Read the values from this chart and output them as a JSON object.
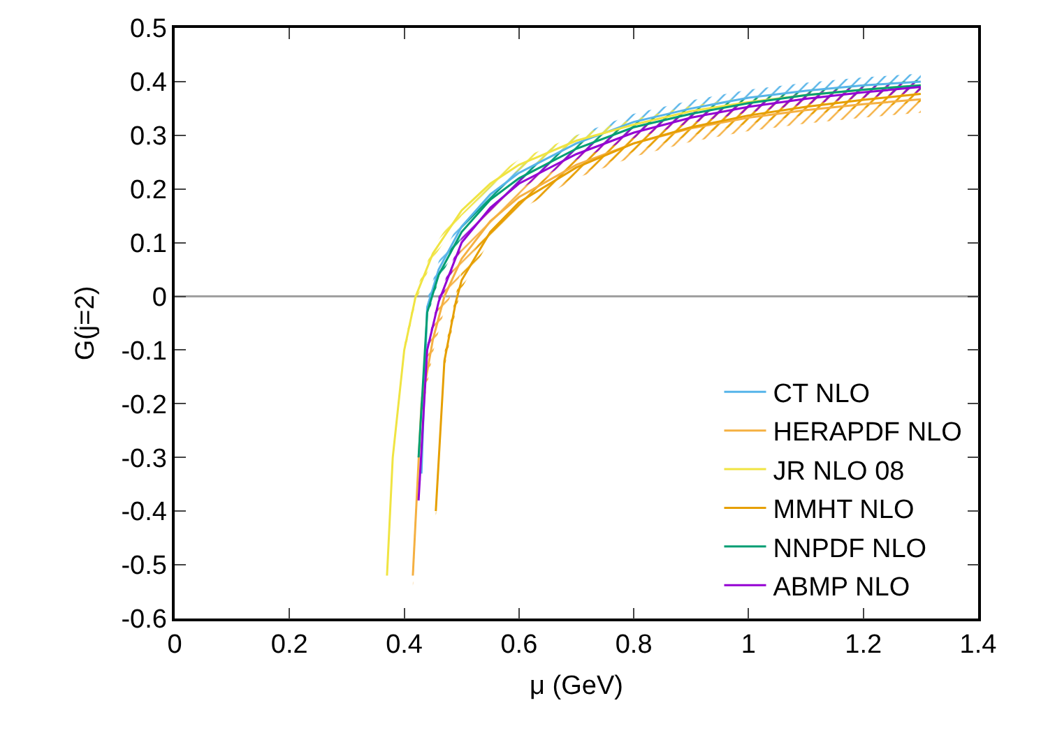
{
  "chart_data": {
    "type": "line",
    "xlabel": "μ (GeV)",
    "ylabel": "G(j=2)",
    "xlim": [
      0,
      1.4
    ],
    "xticks": [
      0,
      0.2,
      0.4,
      0.6,
      0.8,
      1,
      1.2,
      1.4
    ],
    "ylim": [
      -0.6,
      0.5
    ],
    "yticks": [
      -0.6,
      -0.5,
      -0.4,
      -0.3,
      -0.2,
      -0.1,
      0,
      0.1,
      0.2,
      0.3,
      0.4,
      0.5
    ],
    "grid": false,
    "legend": "bottom right",
    "marker": "none",
    "ref_lines": [
      {
        "axis": "y",
        "value": 0,
        "color": "#a0a0a0"
      }
    ],
    "series": [
      {
        "name": "CT NLO",
        "color": "#56b4e9",
        "x": [
          0.43,
          0.44,
          0.46,
          0.5,
          0.55,
          0.6,
          0.7,
          0.8,
          0.9,
          1.0,
          1.1,
          1.2,
          1.3
        ],
        "values": [
          -0.33,
          -0.02,
          0.05,
          0.13,
          0.19,
          0.23,
          0.285,
          0.325,
          0.35,
          0.37,
          0.383,
          0.393,
          0.4
        ],
        "lower": [
          -0.345,
          -0.035,
          0.035,
          0.115,
          0.175,
          0.215,
          0.27,
          0.31,
          0.335,
          0.355,
          0.368,
          0.378,
          0.385
        ],
        "upper": [
          -0.315,
          -0.005,
          0.065,
          0.145,
          0.205,
          0.245,
          0.3,
          0.34,
          0.365,
          0.385,
          0.398,
          0.408,
          0.415
        ]
      },
      {
        "name": "HERAPDF NLO",
        "color": "#f5b041",
        "x": [
          0.415,
          0.43,
          0.45,
          0.47,
          0.5,
          0.55,
          0.6,
          0.7,
          0.8,
          0.9,
          1.0,
          1.1,
          1.2,
          1.3
        ],
        "values": [
          -0.52,
          -0.2,
          -0.08,
          0.0,
          0.07,
          0.14,
          0.185,
          0.245,
          0.285,
          0.313,
          0.333,
          0.347,
          0.358,
          0.367
        ],
        "lower": [
          -0.545,
          -0.225,
          -0.105,
          -0.025,
          0.045,
          0.115,
          0.16,
          0.22,
          0.26,
          0.288,
          0.308,
          0.322,
          0.333,
          0.342
        ],
        "upper": [
          -0.495,
          -0.175,
          -0.055,
          0.025,
          0.095,
          0.165,
          0.21,
          0.27,
          0.31,
          0.338,
          0.358,
          0.372,
          0.383,
          0.392
        ]
      },
      {
        "name": "JR NLO 08",
        "color": "#f0e442",
        "x": [
          0.37,
          0.38,
          0.4,
          0.42,
          0.45,
          0.5,
          0.55,
          0.6,
          0.7,
          0.8,
          0.9,
          1.0,
          1.1,
          1.2,
          1.3
        ],
        "values": [
          -0.52,
          -0.3,
          -0.1,
          0.0,
          0.08,
          0.16,
          0.21,
          0.245,
          0.29,
          0.32,
          0.345,
          0.362,
          0.375,
          0.385,
          0.393
        ],
        "lower": [
          -0.53,
          -0.31,
          -0.11,
          -0.01,
          0.07,
          0.15,
          0.2,
          0.235,
          0.28,
          0.31,
          0.335,
          0.352,
          0.365,
          0.375,
          0.383
        ],
        "upper": [
          -0.51,
          -0.29,
          -0.09,
          0.01,
          0.09,
          0.17,
          0.22,
          0.255,
          0.3,
          0.33,
          0.355,
          0.372,
          0.385,
          0.395,
          0.403
        ]
      },
      {
        "name": "MMHT NLO",
        "color": "#e69f00",
        "x": [
          0.455,
          0.47,
          0.49,
          0.5,
          0.55,
          0.6,
          0.7,
          0.8,
          0.9,
          1.0,
          1.1,
          1.2,
          1.3
        ],
        "values": [
          -0.4,
          -0.12,
          -0.01,
          0.03,
          0.12,
          0.175,
          0.24,
          0.285,
          0.315,
          0.337,
          0.353,
          0.366,
          0.377
        ],
        "lower": [
          -0.415,
          -0.135,
          -0.025,
          0.015,
          0.105,
          0.16,
          0.225,
          0.27,
          0.3,
          0.322,
          0.338,
          0.351,
          0.362
        ],
        "upper": [
          -0.385,
          -0.105,
          0.005,
          0.045,
          0.135,
          0.19,
          0.255,
          0.3,
          0.33,
          0.352,
          0.368,
          0.381,
          0.392
        ]
      },
      {
        "name": "NNPDF NLO",
        "color": "#009e73",
        "x": [
          0.425,
          0.44,
          0.46,
          0.5,
          0.55,
          0.6,
          0.7,
          0.8,
          0.9,
          1.0,
          1.1,
          1.2,
          1.3
        ],
        "values": [
          -0.3,
          -0.03,
          0.04,
          0.12,
          0.18,
          0.22,
          0.275,
          0.315,
          0.34,
          0.36,
          0.375,
          0.385,
          0.393
        ],
        "lower": [
          -0.31,
          -0.04,
          0.03,
          0.11,
          0.17,
          0.21,
          0.265,
          0.305,
          0.33,
          0.35,
          0.365,
          0.375,
          0.383
        ],
        "upper": [
          -0.29,
          -0.02,
          0.05,
          0.13,
          0.19,
          0.23,
          0.285,
          0.325,
          0.35,
          0.37,
          0.385,
          0.395,
          0.403
        ]
      },
      {
        "name": "ABMP NLO",
        "color": "#9400d3",
        "x": [
          0.425,
          0.44,
          0.46,
          0.5,
          0.55,
          0.6,
          0.7,
          0.8,
          0.9,
          1.0,
          1.1,
          1.2,
          1.3
        ],
        "values": [
          -0.38,
          -0.1,
          -0.01,
          0.1,
          0.165,
          0.21,
          0.265,
          0.305,
          0.333,
          0.353,
          0.368,
          0.38,
          0.39
        ],
        "lower": [
          -0.39,
          -0.11,
          -0.02,
          0.09,
          0.155,
          0.2,
          0.255,
          0.295,
          0.323,
          0.343,
          0.358,
          0.37,
          0.38
        ],
        "upper": [
          -0.37,
          -0.09,
          0.0,
          0.11,
          0.175,
          0.22,
          0.275,
          0.315,
          0.343,
          0.363,
          0.378,
          0.39,
          0.4
        ]
      }
    ]
  }
}
